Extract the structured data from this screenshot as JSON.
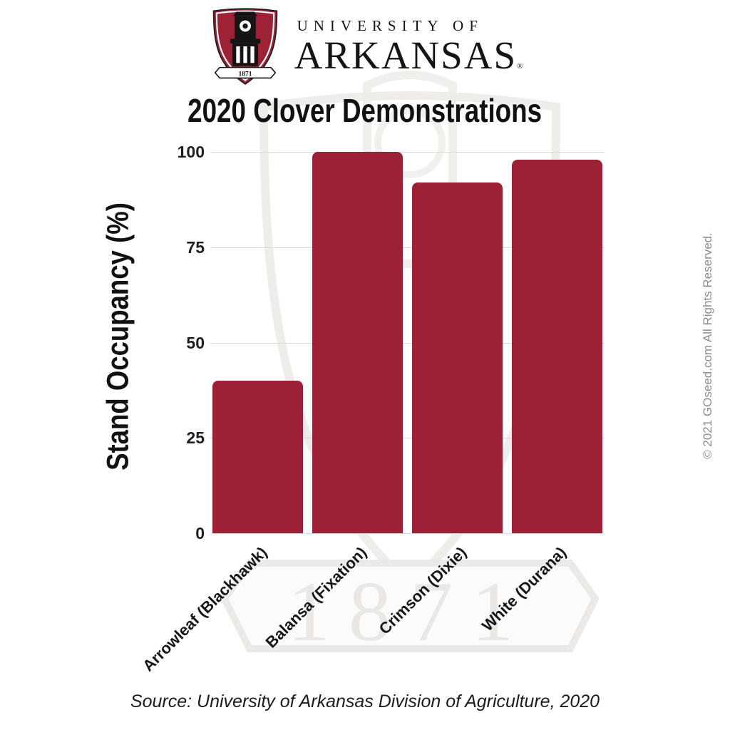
{
  "logo": {
    "line1": "UNIVERSITY OF",
    "line2": "ARKANSAS",
    "registered_mark": "®",
    "shield_year": "1871",
    "shield_color": "#9D2235"
  },
  "chart_data": {
    "type": "bar",
    "title": "2020 Clover Demonstrations",
    "ylabel": "Stand Occupancy (%)",
    "xlabel": "",
    "categories": [
      "Arrowleaf (Blackhawk)",
      "Balansa (Fixation)",
      "Crimson (Dixie)",
      "White (Durana)"
    ],
    "values": [
      40,
      100,
      92,
      98
    ],
    "ylim": [
      0,
      100
    ],
    "yticks": [
      0,
      25,
      50,
      75,
      100
    ],
    "grid": true,
    "legend": false,
    "bar_color": "#9C2136",
    "gridline_color": "#d9d9d9",
    "tick_label_color": "#1f1f1f"
  },
  "footer": {
    "source_text": "Source: University of Arkansas Division of Agriculture, 2020"
  },
  "side": {
    "copyright_text": "© 2021 GOseed.com All Rights Reserved."
  }
}
